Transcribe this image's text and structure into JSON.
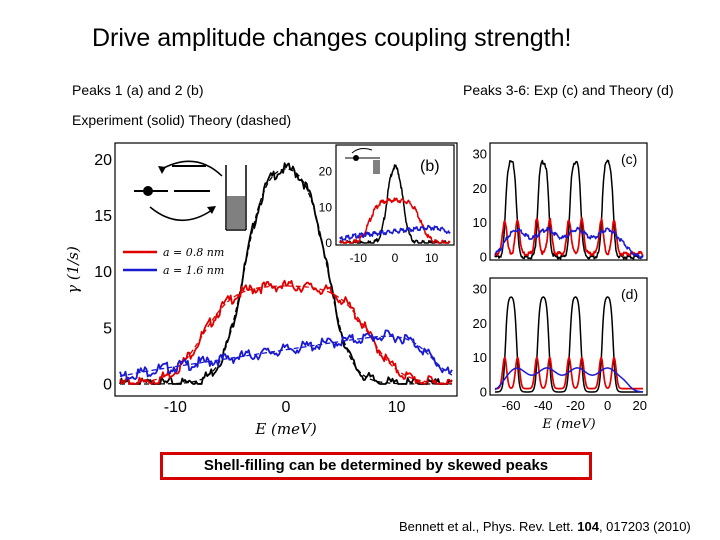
{
  "title": "Drive amplitude changes coupling strength!",
  "captions": {
    "left": "Peaks 1 (a) and 2 (b)",
    "right": "Peaks 3-6: Exp (c) and Theory (d)",
    "experiment": "Experiment (solid) Theory (dashed)"
  },
  "callout": "Shell-filling can be determined by skewed peaks",
  "citation": {
    "prefix": "Bennett et al., Phys. Rev. Lett. ",
    "volume": "104",
    "suffix": ", 017203 (2010)"
  },
  "colors": {
    "black": "#000000",
    "red": "#e00000",
    "blue": "#1a1ad0",
    "gray": "#808080",
    "callout_border": "#d60000"
  },
  "chart_data": [
    {
      "id": "a",
      "type": "line",
      "xlabel": "E (meV)",
      "ylabel": "γ (1/s)",
      "xlim": [
        -15,
        15
      ],
      "ylim": [
        0,
        21
      ],
      "xticks": [
        -10,
        0,
        10
      ],
      "yticks": [
        0,
        5,
        10,
        15,
        20
      ],
      "legend": [
        "a = 0.8 nm",
        "a = 1.6 nm"
      ],
      "series": [
        {
          "name": "black",
          "color": "black",
          "shape": "peak",
          "center": 0,
          "height": 20,
          "halfwidth": 3.8,
          "edge": 1.0
        },
        {
          "name": "a = 0.8 nm",
          "color": "red",
          "shape": "plateau",
          "center": 0,
          "height": 8.8,
          "halfwidth": 7.5,
          "edge": 1.4
        },
        {
          "name": "a = 1.6 nm",
          "color": "blue",
          "shape": "skew",
          "from": -15,
          "to": 13,
          "start": 0.8,
          "peak": 5.0,
          "edge": 1.2
        }
      ]
    },
    {
      "id": "b",
      "type": "line",
      "panel_label": "(b)",
      "xlim": [
        -15,
        15
      ],
      "ylim": [
        0,
        26
      ],
      "xticks": [
        -10,
        0,
        10
      ],
      "yticks": [
        0,
        10,
        20
      ],
      "series": [
        {
          "name": "black",
          "color": "black",
          "shape": "peak",
          "center": 0,
          "height": 24,
          "halfwidth": 2.2,
          "edge": 0.8
        },
        {
          "name": "red",
          "color": "red",
          "shape": "plateau",
          "center": 0,
          "height": 12,
          "halfwidth": 7,
          "edge": 1.2
        },
        {
          "name": "blue",
          "color": "blue",
          "shape": "skew",
          "from": -15,
          "to": 15,
          "start": 1.5,
          "peak": 5,
          "edge": 1.5
        }
      ]
    },
    {
      "id": "c",
      "type": "line",
      "panel_label": "(c)",
      "xlim": [
        -70,
        22
      ],
      "ylim": [
        0,
        32
      ],
      "yticks": [
        0,
        10,
        20,
        30
      ],
      "peaks": [
        -60,
        -40,
        -20,
        0
      ],
      "black_height": 28,
      "red_height": 11,
      "blue_height": 8
    },
    {
      "id": "d",
      "type": "line",
      "panel_label": "(d)",
      "xlabel": "E (meV)",
      "xlim": [
        -70,
        22
      ],
      "ylim": [
        0,
        32
      ],
      "xticks": [
        -60,
        -40,
        -20,
        0,
        20
      ],
      "yticks": [
        0,
        10,
        20,
        30
      ],
      "peaks": [
        -60,
        -40,
        -20,
        0
      ],
      "black_height": 28,
      "red_height": 10,
      "blue_height": 7
    }
  ]
}
